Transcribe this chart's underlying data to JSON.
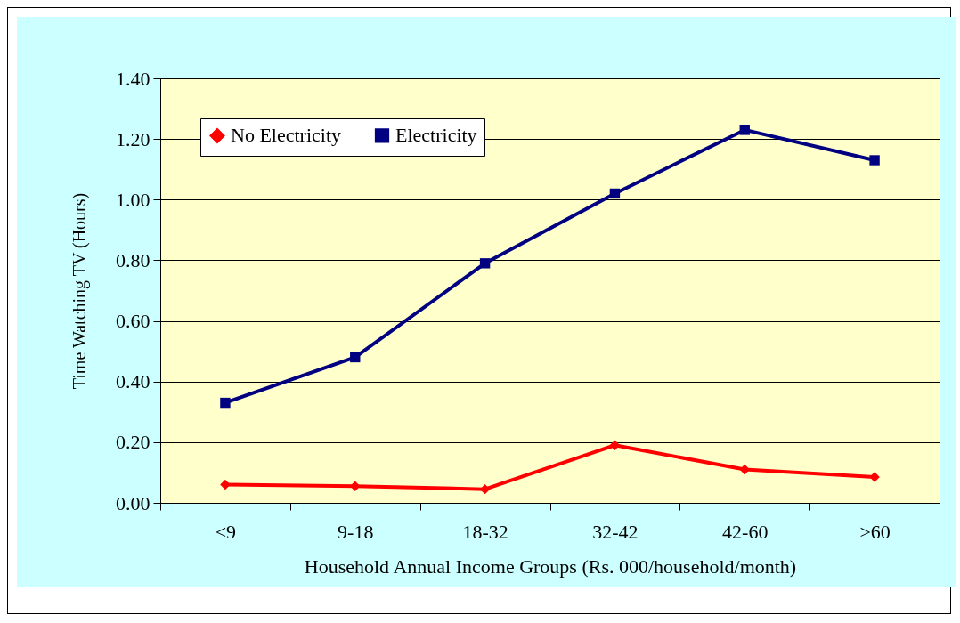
{
  "chart_data": {
    "type": "line",
    "xlabel": "Household Annual Income Groups (Rs. 000/household/month)",
    "ylabel": "Time Watching TV (Hours)",
    "categories": [
      "<9",
      "9-18",
      "18-32",
      "32-42",
      "42-60",
      ">60"
    ],
    "series": [
      {
        "name": "No Electricity",
        "color": "#ff0000",
        "marker": "diamond",
        "values": [
          0.06,
          0.055,
          0.045,
          0.19,
          0.11,
          0.085
        ]
      },
      {
        "name": "Electricity",
        "color": "#000080",
        "marker": "square",
        "values": [
          0.33,
          0.48,
          0.79,
          1.02,
          1.23,
          1.13
        ]
      }
    ],
    "ylim": [
      0,
      1.4
    ],
    "yticks": [
      {
        "value": 0,
        "label": "0.00"
      },
      {
        "value": 0.2,
        "label": "0.20"
      },
      {
        "value": 0.4,
        "label": "0.40"
      },
      {
        "value": 0.6,
        "label": "0.60"
      },
      {
        "value": 0.8,
        "label": "0.80"
      },
      {
        "value": 1,
        "label": "1.00"
      },
      {
        "value": 1.2,
        "label": "1.20"
      },
      {
        "value": 1.4,
        "label": "1.40"
      }
    ],
    "grid": "y",
    "legend": "top left",
    "line_style": "solid"
  }
}
